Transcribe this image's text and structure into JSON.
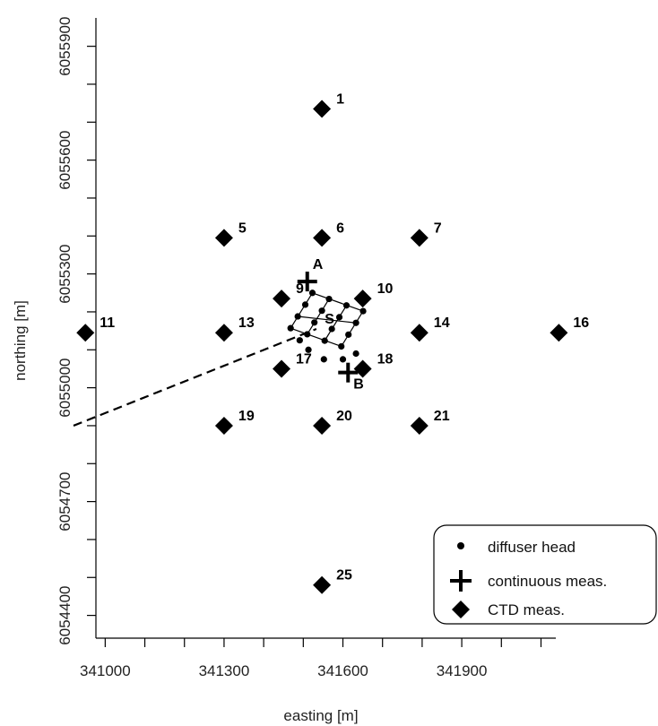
{
  "chart_data": {
    "type": "scatter",
    "xlabel": "easting [m]",
    "ylabel": "northing [m]",
    "xlim": [
      340920,
      342160
    ],
    "ylim": [
      6054340,
      6055970
    ],
    "x_ticks": [
      341000,
      341100,
      341200,
      341300,
      341400,
      341500,
      341600,
      341700,
      341800,
      341900,
      342000,
      342100
    ],
    "x_tick_labels": [
      {
        "value": 341000,
        "label": "341000"
      },
      {
        "value": 341300,
        "label": "341300"
      },
      {
        "value": 341600,
        "label": "341600"
      },
      {
        "value": 341900,
        "label": "341900"
      }
    ],
    "y_ticks": [
      6054400,
      6054500,
      6054600,
      6054700,
      6054800,
      6054900,
      6055000,
      6055100,
      6055200,
      6055300,
      6055400,
      6055500,
      6055600,
      6055700,
      6055800,
      6055900
    ],
    "y_tick_labels": [
      {
        "value": 6054400,
        "label": "6054400"
      },
      {
        "value": 6054700,
        "label": "6054700"
      },
      {
        "value": 6055000,
        "label": "6055000"
      },
      {
        "value": 6055300,
        "label": "6055300"
      },
      {
        "value": 6055600,
        "label": "6055600"
      },
      {
        "value": 6055900,
        "label": "6055900"
      }
    ],
    "series": [
      {
        "name": "CTD meas.",
        "marker": "diamond",
        "points": [
          {
            "x": 341547,
            "y": 6055735,
            "label": "1"
          },
          {
            "x": 341300,
            "y": 6055395,
            "label": "5"
          },
          {
            "x": 341547,
            "y": 6055395,
            "label": "6"
          },
          {
            "x": 341793,
            "y": 6055395,
            "label": "7"
          },
          {
            "x": 341445,
            "y": 6055235,
            "label": "9"
          },
          {
            "x": 341650,
            "y": 6055235,
            "label": "10"
          },
          {
            "x": 340950,
            "y": 6055145,
            "label": "11"
          },
          {
            "x": 341300,
            "y": 6055145,
            "label": "13"
          },
          {
            "x": 341793,
            "y": 6055145,
            "label": "14"
          },
          {
            "x": 342145,
            "y": 6055145,
            "label": "16"
          },
          {
            "x": 341445,
            "y": 6055050,
            "label": "17"
          },
          {
            "x": 341650,
            "y": 6055050,
            "label": "18"
          },
          {
            "x": 341300,
            "y": 6054900,
            "label": "19"
          },
          {
            "x": 341547,
            "y": 6054900,
            "label": "20"
          },
          {
            "x": 341793,
            "y": 6054900,
            "label": "21"
          },
          {
            "x": 341547,
            "y": 6054480,
            "label": "25"
          }
        ]
      },
      {
        "name": "continuous meas.",
        "marker": "cross",
        "points": [
          {
            "x": 341510,
            "y": 6055280,
            "label": "A"
          },
          {
            "x": 341613,
            "y": 6055040,
            "label": "B"
          }
        ]
      },
      {
        "name": "diffuser head",
        "marker": "dot",
        "points": [
          {
            "x": 341523,
            "y": 6055250
          },
          {
            "x": 341505,
            "y": 6055219
          },
          {
            "x": 341486,
            "y": 6055188
          },
          {
            "x": 341468,
            "y": 6055157
          },
          {
            "x": 341565,
            "y": 6055234
          },
          {
            "x": 341547,
            "y": 6055203
          },
          {
            "x": 341528,
            "y": 6055172
          },
          {
            "x": 341510,
            "y": 6055141
          },
          {
            "x": 341609,
            "y": 6055217
          },
          {
            "x": 341591,
            "y": 6055186
          },
          {
            "x": 341572,
            "y": 6055155
          },
          {
            "x": 341554,
            "y": 6055124
          },
          {
            "x": 341651,
            "y": 6055202
          },
          {
            "x": 341633,
            "y": 6055171
          },
          {
            "x": 341614,
            "y": 6055140
          },
          {
            "x": 341596,
            "y": 6055109
          },
          {
            "x": 341491,
            "y": 6055125
          },
          {
            "x": 341513,
            "y": 6055100
          },
          {
            "x": 341552,
            "y": 6055075
          },
          {
            "x": 341600,
            "y": 6055075
          },
          {
            "x": 341633,
            "y": 6055090
          }
        ]
      }
    ],
    "lines": [
      {
        "name": "diffuser-pipe",
        "style": "solid",
        "points": [
          [
            341523,
            6055250
          ],
          [
            341468,
            6055157
          ]
        ]
      },
      {
        "name": "diffuser-pipe",
        "style": "solid",
        "points": [
          [
            341565,
            6055234
          ],
          [
            341510,
            6055141
          ]
        ]
      },
      {
        "name": "diffuser-pipe",
        "style": "solid",
        "points": [
          [
            341609,
            6055217
          ],
          [
            341554,
            6055124
          ]
        ]
      },
      {
        "name": "diffuser-pipe",
        "style": "solid",
        "points": [
          [
            341651,
            6055202
          ],
          [
            341596,
            6055109
          ]
        ]
      },
      {
        "name": "diffuser-pipe",
        "style": "solid",
        "points": [
          [
            341523,
            6055250
          ],
          [
            341651,
            6055202
          ]
        ]
      },
      {
        "name": "diffuser-pipe",
        "style": "solid",
        "points": [
          [
            341468,
            6055157
          ],
          [
            341596,
            6055109
          ]
        ]
      },
      {
        "name": "diffuser-pipe",
        "style": "solid",
        "points": [
          [
            341486,
            6055188
          ],
          [
            341633,
            6055171
          ]
        ]
      },
      {
        "name": "outfall-pipeline",
        "style": "dashed",
        "points": [
          [
            340920,
            6054900
          ],
          [
            341533,
            6055155
          ]
        ]
      }
    ],
    "annotations": [
      {
        "text": "S",
        "x": 341545,
        "y": 6055155
      }
    ],
    "legend": {
      "position": "bottom-right",
      "entries": [
        {
          "marker": "dot",
          "label": "diffuser head"
        },
        {
          "marker": "cross",
          "label": "continuous meas."
        },
        {
          "marker": "diamond",
          "label": "CTD meas."
        }
      ]
    },
    "grid": false
  }
}
